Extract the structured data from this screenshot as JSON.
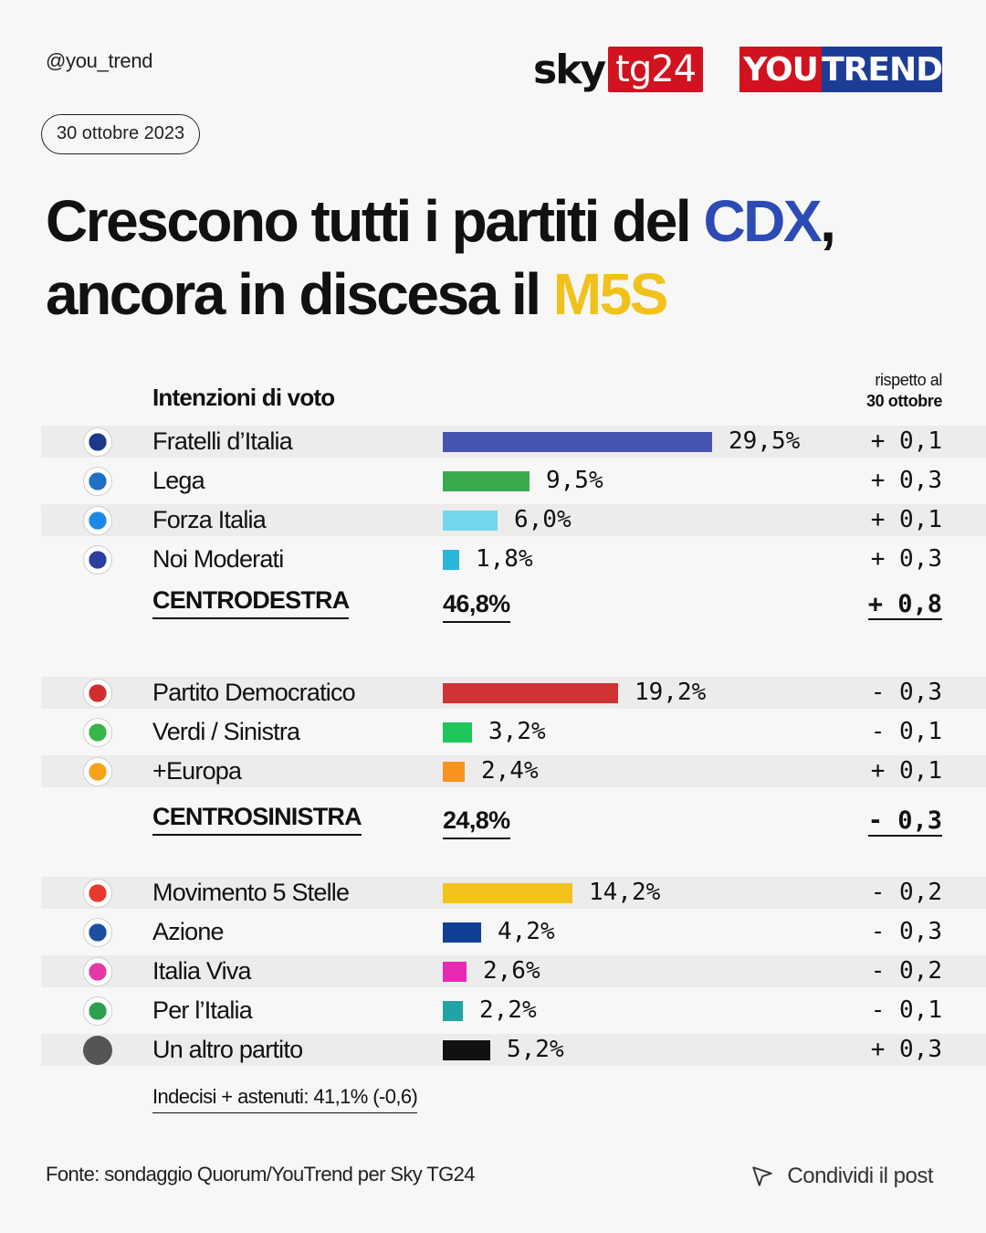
{
  "header": {
    "handle": "@you_trend",
    "date": "30 ottobre 2023",
    "logo_sky": "sky",
    "logo_tg24": "tg24",
    "logo_you": "YOU",
    "logo_trend": "TREND"
  },
  "title": {
    "line1_pre": "Crescono tutti i partiti del ",
    "line1_hl": "CDX",
    "line1_post": ",",
    "line2_pre": "ancora in discesa il ",
    "line2_hl": "M5S"
  },
  "table_header": {
    "label": "Intenzioni di voto",
    "compare_line1": "rispetto al",
    "compare_line2": "30 ottobre"
  },
  "colors": {
    "cdx": "#2d4bb5",
    "m5s": "#f1c21b",
    "brand_red": "#d1121f",
    "brand_blue": "#1c3d95"
  },
  "chart_data": {
    "type": "bar",
    "orientation": "horizontal",
    "unit": "%",
    "groups": [
      {
        "rows": [
          {
            "party": "Fratelli d’Italia",
            "value": 29.5,
            "label": "29,5%",
            "delta": "+ 0,1",
            "color": "#4654b0",
            "icon": "fdi-logo-icon"
          },
          {
            "party": "Lega",
            "value": 9.5,
            "label": "9,5%",
            "delta": "+ 0,3",
            "color": "#3aaa4f",
            "icon": "lega-logo-icon"
          },
          {
            "party": "Forza Italia",
            "value": 6.0,
            "label": "6,0%",
            "delta": "+ 0,1",
            "color": "#73d6ea",
            "icon": "forza-italia-logo-icon"
          },
          {
            "party": "Noi Moderati",
            "value": 1.8,
            "label": "1,8%",
            "delta": "+ 0,3",
            "color": "#29b6d9",
            "icon": "noi-moderati-logo-icon"
          }
        ],
        "total": {
          "name": "CENTRODESTRA",
          "label": "46,8%",
          "delta": "+ 0,8"
        }
      },
      {
        "rows": [
          {
            "party": "Partito Democratico",
            "value": 19.2,
            "label": "19,2%",
            "delta": "- 0,3",
            "color": "#d03333",
            "icon": "pd-logo-icon"
          },
          {
            "party": "Verdi / Sinistra",
            "value": 3.2,
            "label": "3,2%",
            "delta": "- 0,1",
            "color": "#1fc65c",
            "icon": "avs-logo-icon"
          },
          {
            "party": "+Europa",
            "value": 2.4,
            "label": "2,4%",
            "delta": "+ 0,1",
            "color": "#f7941d",
            "icon": "piu-europa-logo-icon"
          }
        ],
        "total": {
          "name": "CENTROSINISTRA",
          "label": "24,8%",
          "delta": "- 0,3"
        }
      },
      {
        "rows": [
          {
            "party": "Movimento 5 Stelle",
            "value": 14.2,
            "label": "14,2%",
            "delta": "- 0,2",
            "color": "#f3c31c",
            "icon": "m5s-logo-icon"
          },
          {
            "party": "Azione",
            "value": 4.2,
            "label": "4,2%",
            "delta": "- 0,3",
            "color": "#123f96",
            "icon": "azione-logo-icon"
          },
          {
            "party": "Italia Viva",
            "value": 2.6,
            "label": "2,6%",
            "delta": "- 0,2",
            "color": "#e829b3",
            "icon": "italia-viva-logo-icon"
          },
          {
            "party": "Per l’Italia",
            "value": 2.2,
            "label": "2,2%",
            "delta": "- 0,1",
            "color": "#22a4a6",
            "icon": "per-l-italia-logo-icon"
          },
          {
            "party": "Un altro partito",
            "value": 5.2,
            "label": "5,2%",
            "delta": "+ 0,3",
            "color": "#111111",
            "icon": "other-party-icon"
          }
        ]
      }
    ]
  },
  "footer": {
    "undecided": "Indecisi + astenuti: 41,1% (-0,6)",
    "source": "Fonte: sondaggio Quorum/YouTrend per Sky TG24",
    "share": "Condividi il post"
  }
}
